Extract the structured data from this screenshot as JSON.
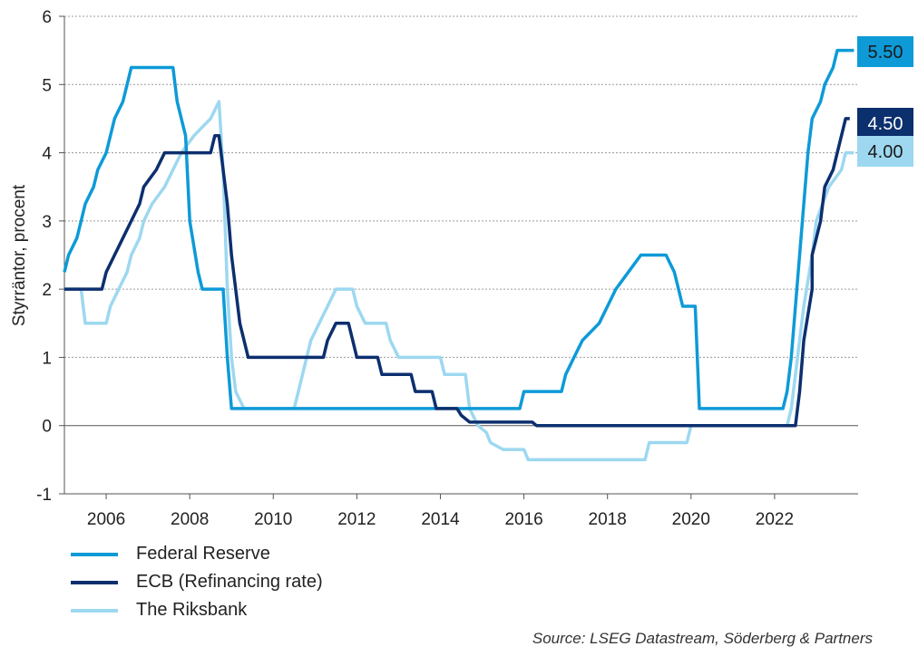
{
  "chart_data": {
    "type": "line",
    "title": "",
    "xlabel": "",
    "ylabel": "Styrräntor, procent",
    "xlim": [
      2005.0,
      2024.0
    ],
    "ylim": [
      -1,
      6
    ],
    "xticks": [
      2006,
      2008,
      2010,
      2012,
      2014,
      2016,
      2018,
      2020,
      2022
    ],
    "yticks": [
      -1,
      0,
      1,
      2,
      3,
      4,
      5,
      6
    ],
    "grid": "horizontal",
    "legend": "bottom-left",
    "series": [
      {
        "name": "Federal Reserve",
        "color": "#0E9AD7",
        "end_label": "5.50",
        "points": [
          [
            2005.0,
            2.25
          ],
          [
            2005.1,
            2.5
          ],
          [
            2005.3,
            2.75
          ],
          [
            2005.4,
            3.0
          ],
          [
            2005.5,
            3.25
          ],
          [
            2005.7,
            3.5
          ],
          [
            2005.8,
            3.75
          ],
          [
            2006.0,
            4.0
          ],
          [
            2006.1,
            4.25
          ],
          [
            2006.2,
            4.5
          ],
          [
            2006.4,
            4.75
          ],
          [
            2006.5,
            5.0
          ],
          [
            2006.6,
            5.25
          ],
          [
            2007.6,
            5.25
          ],
          [
            2007.7,
            4.75
          ],
          [
            2007.8,
            4.5
          ],
          [
            2007.9,
            4.25
          ],
          [
            2008.0,
            3.0
          ],
          [
            2008.2,
            2.25
          ],
          [
            2008.3,
            2.0
          ],
          [
            2008.8,
            2.0
          ],
          [
            2008.9,
            1.0
          ],
          [
            2009.0,
            0.25
          ],
          [
            2015.9,
            0.25
          ],
          [
            2016.0,
            0.5
          ],
          [
            2016.9,
            0.5
          ],
          [
            2017.0,
            0.75
          ],
          [
            2017.2,
            1.0
          ],
          [
            2017.4,
            1.25
          ],
          [
            2017.8,
            1.5
          ],
          [
            2018.0,
            1.75
          ],
          [
            2018.2,
            2.0
          ],
          [
            2018.5,
            2.25
          ],
          [
            2018.8,
            2.5
          ],
          [
            2019.4,
            2.5
          ],
          [
            2019.6,
            2.25
          ],
          [
            2019.7,
            2.0
          ],
          [
            2019.8,
            1.75
          ],
          [
            2020.1,
            1.75
          ],
          [
            2020.2,
            0.25
          ],
          [
            2022.2,
            0.25
          ],
          [
            2022.3,
            0.5
          ],
          [
            2022.4,
            1.0
          ],
          [
            2022.5,
            1.75
          ],
          [
            2022.6,
            2.5
          ],
          [
            2022.7,
            3.25
          ],
          [
            2022.8,
            4.0
          ],
          [
            2022.9,
            4.5
          ],
          [
            2023.1,
            4.75
          ],
          [
            2023.2,
            5.0
          ],
          [
            2023.4,
            5.25
          ],
          [
            2023.5,
            5.5
          ],
          [
            2023.9,
            5.5
          ]
        ]
      },
      {
        "name": "ECB (Refinancing rate)",
        "color": "#0C2F6E",
        "end_label": "4.50",
        "points": [
          [
            2005.0,
            2.0
          ],
          [
            2005.9,
            2.0
          ],
          [
            2006.0,
            2.25
          ],
          [
            2006.2,
            2.5
          ],
          [
            2006.4,
            2.75
          ],
          [
            2006.6,
            3.0
          ],
          [
            2006.8,
            3.25
          ],
          [
            2006.9,
            3.5
          ],
          [
            2007.2,
            3.75
          ],
          [
            2007.4,
            4.0
          ],
          [
            2008.5,
            4.0
          ],
          [
            2008.6,
            4.25
          ],
          [
            2008.7,
            4.25
          ],
          [
            2008.8,
            3.75
          ],
          [
            2008.9,
            3.25
          ],
          [
            2009.0,
            2.5
          ],
          [
            2009.1,
            2.0
          ],
          [
            2009.2,
            1.5
          ],
          [
            2009.3,
            1.25
          ],
          [
            2009.4,
            1.0
          ],
          [
            2011.2,
            1.0
          ],
          [
            2011.3,
            1.25
          ],
          [
            2011.5,
            1.5
          ],
          [
            2011.8,
            1.5
          ],
          [
            2011.9,
            1.25
          ],
          [
            2012.0,
            1.0
          ],
          [
            2012.5,
            1.0
          ],
          [
            2012.6,
            0.75
          ],
          [
            2013.3,
            0.75
          ],
          [
            2013.4,
            0.5
          ],
          [
            2013.8,
            0.5
          ],
          [
            2013.9,
            0.25
          ],
          [
            2014.4,
            0.25
          ],
          [
            2014.5,
            0.15
          ],
          [
            2014.7,
            0.05
          ],
          [
            2016.2,
            0.05
          ],
          [
            2016.3,
            0.0
          ],
          [
            2022.5,
            0.0
          ],
          [
            2022.6,
            0.5
          ],
          [
            2022.7,
            1.25
          ],
          [
            2022.9,
            2.0
          ],
          [
            2022.9,
            2.5
          ],
          [
            2023.1,
            3.0
          ],
          [
            2023.2,
            3.5
          ],
          [
            2023.4,
            3.75
          ],
          [
            2023.5,
            4.0
          ],
          [
            2023.6,
            4.25
          ],
          [
            2023.7,
            4.5
          ],
          [
            2023.8,
            4.5
          ]
        ]
      },
      {
        "name": "The Riksbank",
        "color": "#9DD8F0",
        "end_label": "4.00",
        "points": [
          [
            2005.0,
            2.0
          ],
          [
            2005.4,
            2.0
          ],
          [
            2005.5,
            1.5
          ],
          [
            2006.0,
            1.5
          ],
          [
            2006.1,
            1.75
          ],
          [
            2006.3,
            2.0
          ],
          [
            2006.5,
            2.25
          ],
          [
            2006.6,
            2.5
          ],
          [
            2006.8,
            2.75
          ],
          [
            2006.9,
            3.0
          ],
          [
            2007.1,
            3.25
          ],
          [
            2007.4,
            3.5
          ],
          [
            2007.6,
            3.75
          ],
          [
            2007.8,
            4.0
          ],
          [
            2008.1,
            4.25
          ],
          [
            2008.5,
            4.5
          ],
          [
            2008.7,
            4.75
          ],
          [
            2008.8,
            3.75
          ],
          [
            2008.9,
            2.0
          ],
          [
            2009.0,
            1.0
          ],
          [
            2009.1,
            0.5
          ],
          [
            2009.3,
            0.25
          ],
          [
            2010.5,
            0.25
          ],
          [
            2010.6,
            0.5
          ],
          [
            2010.7,
            0.75
          ],
          [
            2010.8,
            1.0
          ],
          [
            2010.9,
            1.25
          ],
          [
            2011.1,
            1.5
          ],
          [
            2011.3,
            1.75
          ],
          [
            2011.5,
            2.0
          ],
          [
            2011.9,
            2.0
          ],
          [
            2012.0,
            1.75
          ],
          [
            2012.2,
            1.5
          ],
          [
            2012.7,
            1.5
          ],
          [
            2012.8,
            1.25
          ],
          [
            2013.0,
            1.0
          ],
          [
            2014.0,
            1.0
          ],
          [
            2014.1,
            0.75
          ],
          [
            2014.6,
            0.75
          ],
          [
            2014.7,
            0.25
          ],
          [
            2014.9,
            0.0
          ],
          [
            2015.1,
            -0.1
          ],
          [
            2015.2,
            -0.25
          ],
          [
            2015.5,
            -0.35
          ],
          [
            2016.0,
            -0.35
          ],
          [
            2016.1,
            -0.5
          ],
          [
            2018.9,
            -0.5
          ],
          [
            2019.0,
            -0.25
          ],
          [
            2019.9,
            -0.25
          ],
          [
            2020.0,
            0.0
          ],
          [
            2022.3,
            0.0
          ],
          [
            2022.4,
            0.25
          ],
          [
            2022.5,
            0.75
          ],
          [
            2022.7,
            1.75
          ],
          [
            2022.9,
            2.5
          ],
          [
            2023.0,
            3.0
          ],
          [
            2023.3,
            3.5
          ],
          [
            2023.6,
            3.75
          ],
          [
            2023.7,
            4.0
          ],
          [
            2023.9,
            4.0
          ]
        ]
      }
    ],
    "source": "Source: LSEG Datastream, Söderberg & Partners"
  }
}
